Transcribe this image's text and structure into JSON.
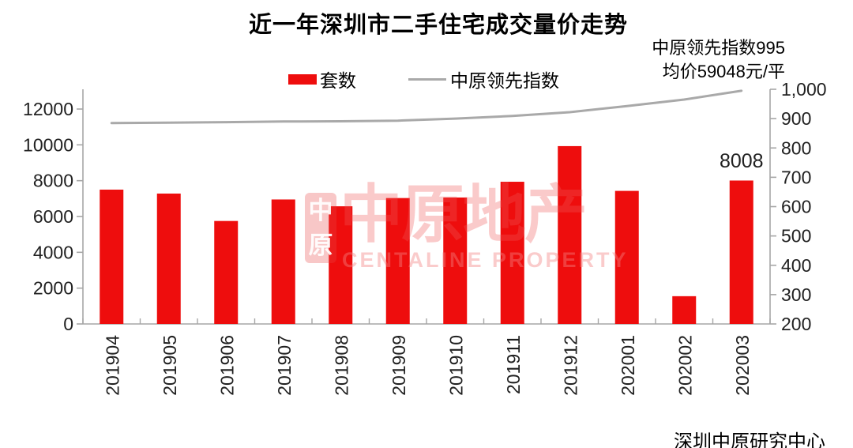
{
  "title": "近一年深圳市二手住宅成交量价走势",
  "annotations": {
    "line1": "中原领先指数995",
    "line2": "均价59048元/平"
  },
  "legend": {
    "bar_label": "套数",
    "line_label": "中原领先指数"
  },
  "footer": "深圳中原研究中心",
  "watermark": {
    "seal_top": "中",
    "seal_bottom": "原",
    "text": "中原地产",
    "subtext": "CENTALINE PROPERTY"
  },
  "colors": {
    "bar": "#ee0d0d",
    "line": "#a9a9a9",
    "axis": "#a6a6a6",
    "label_text": "#212121",
    "watermark_pink": "#ee5a5a"
  },
  "chart_data": {
    "type": "bar",
    "title": "近一年深圳市二手住宅成交量价走势",
    "categories": [
      "201904",
      "201905",
      "201906",
      "201907",
      "201908",
      "201909",
      "201910",
      "201911",
      "201912",
      "202001",
      "202002",
      "202003"
    ],
    "series": [
      {
        "name": "套数",
        "type": "bar",
        "axis": "left",
        "values": [
          7500,
          7280,
          5750,
          6950,
          6570,
          7030,
          7060,
          7940,
          9930,
          7430,
          1550,
          8008
        ]
      },
      {
        "name": "中原领先指数",
        "type": "line",
        "axis": "right",
        "values": [
          885,
          886,
          888,
          890,
          891,
          893,
          900,
          909,
          922,
          943,
          965,
          995
        ]
      }
    ],
    "left_axis": {
      "min": 0,
      "max": 12000,
      "tick_labels": [
        "0",
        "2000",
        "4000",
        "6000",
        "8000",
        "10000",
        "12000"
      ]
    },
    "right_axis": {
      "min": 200,
      "max": 1000,
      "tick_labels": [
        "200",
        "300",
        "400",
        "500",
        "600",
        "700",
        "800",
        "900",
        "1,000"
      ]
    },
    "data_label": {
      "category": "202003",
      "text": "8008"
    },
    "legend_position": "top",
    "grid": false
  }
}
